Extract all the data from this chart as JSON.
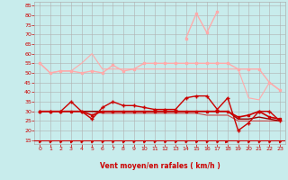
{
  "x": [
    0,
    1,
    2,
    3,
    4,
    5,
    6,
    7,
    8,
    9,
    10,
    11,
    12,
    13,
    14,
    15,
    16,
    17,
    18,
    19,
    20,
    21,
    22,
    23
  ],
  "background_color": "#c8ecec",
  "grid_color": "#b0b0b0",
  "xlabel": "Vent moyen/en rafales ( km/h )",
  "ylim": [
    13,
    87
  ],
  "xlim": [
    -0.5,
    23.5
  ],
  "yticks": [
    15,
    20,
    25,
    30,
    35,
    40,
    45,
    50,
    55,
    60,
    65,
    70,
    75,
    80,
    85
  ],
  "xticks": [
    0,
    1,
    2,
    3,
    4,
    5,
    6,
    7,
    8,
    9,
    10,
    11,
    12,
    13,
    14,
    15,
    16,
    17,
    18,
    19,
    20,
    21,
    22,
    23
  ],
  "series": [
    {
      "values": [
        55,
        50,
        51,
        51,
        50,
        51,
        50,
        54,
        51,
        52,
        55,
        55,
        55,
        55,
        55,
        55,
        55,
        55,
        55,
        52,
        52,
        52,
        45,
        41
      ],
      "color": "#ffaaaa",
      "linewidth": 1.0,
      "marker": "s",
      "markersize": 2.0,
      "zorder": 3
    },
    {
      "values": [
        55,
        50,
        51,
        51,
        55,
        60,
        52,
        52,
        52,
        52,
        52,
        52,
        52,
        52,
        52,
        52,
        52,
        52,
        52,
        52,
        37,
        36,
        45,
        41
      ],
      "color": "#ffaaaa",
      "linewidth": 0.8,
      "marker": null,
      "markersize": 0,
      "zorder": 2
    },
    {
      "values": [
        30,
        30,
        30,
        30,
        30,
        28,
        30,
        30,
        30,
        30,
        30,
        30,
        30,
        30,
        30,
        30,
        30,
        30,
        30,
        27,
        28,
        30,
        27,
        26
      ],
      "color": "#cc0000",
      "linewidth": 1.2,
      "marker": "s",
      "markersize": 2.0,
      "zorder": 5
    },
    {
      "values": [
        30,
        30,
        30,
        35,
        30,
        26,
        32,
        35,
        33,
        33,
        32,
        31,
        31,
        31,
        37,
        38,
        38,
        31,
        37,
        20,
        24,
        30,
        30,
        25
      ],
      "color": "#cc0000",
      "linewidth": 1.0,
      "marker": "+",
      "markersize": 3.5,
      "zorder": 6
    },
    {
      "values": [
        30,
        30,
        30,
        30,
        30,
        30,
        30,
        30,
        30,
        30,
        30,
        30,
        30,
        30,
        30,
        30,
        30,
        30,
        30,
        26,
        26,
        27,
        26,
        25
      ],
      "color": "#990000",
      "linewidth": 1.0,
      "marker": null,
      "markersize": 0,
      "zorder": 4
    },
    {
      "values": [
        30,
        30,
        30,
        30,
        30,
        30,
        29,
        29,
        29,
        29,
        29,
        29,
        29,
        29,
        29,
        29,
        28,
        28,
        28,
        25,
        25,
        25,
        25,
        25
      ],
      "color": "#cc4444",
      "linewidth": 0.8,
      "marker": null,
      "markersize": 0,
      "zorder": 3
    },
    {
      "values": [
        null,
        null,
        null,
        null,
        null,
        null,
        null,
        null,
        null,
        null,
        null,
        null,
        null,
        null,
        68,
        81,
        71,
        82,
        null,
        null,
        null,
        null,
        null,
        null
      ],
      "color": "#ffaaaa",
      "linewidth": 1.0,
      "marker": "s",
      "markersize": 2.0,
      "zorder": 3,
      "sparse": true
    }
  ],
  "red_line_y": 15,
  "arrow_color": "#cc0000",
  "axis_label_color": "#cc0000",
  "tick_color": "#cc0000",
  "arrow_dirs": [
    45,
    45,
    45,
    45,
    45,
    45,
    45,
    45,
    45,
    45,
    45,
    45,
    45,
    45,
    45,
    45,
    45,
    45,
    0,
    45,
    45,
    45,
    45,
    45
  ]
}
